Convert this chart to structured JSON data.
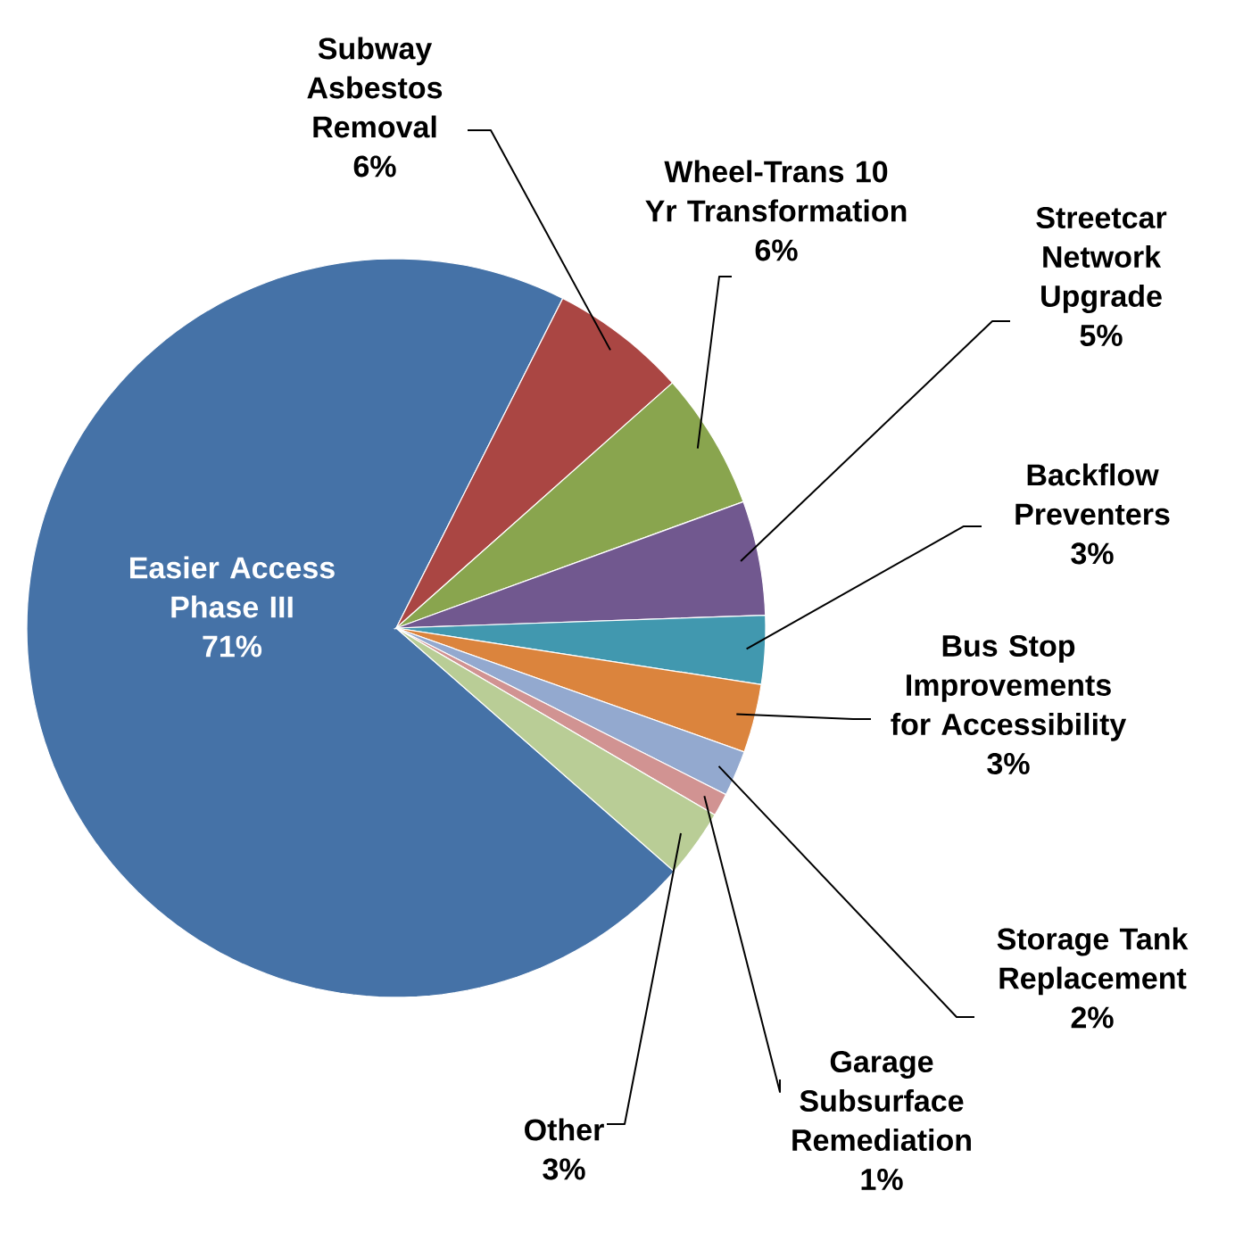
{
  "chart_data": {
    "type": "pie",
    "categories": [
      "Easier Access Phase III",
      "Subway Asbestos Removal",
      "Wheel-Trans 10 Yr Transformation",
      "Streetcar Network Upgrade",
      "Backflow Preventers",
      "Bus Stop Improvements for Accessibility",
      "Storage Tank Replacement",
      "Garage Subsurface Remediation",
      "Other"
    ],
    "values": [
      71,
      6,
      6,
      5,
      3,
      3,
      2,
      1,
      3
    ],
    "value_labels": [
      "71%",
      "6%",
      "6%",
      "5%",
      "3%",
      "3%",
      "2%",
      "1%",
      "3%"
    ],
    "colors": [
      "#4572a7",
      "#aa4643",
      "#89a54e",
      "#71588f",
      "#4198af",
      "#db843d",
      "#93a9cf",
      "#d19392",
      "#b9cd96"
    ]
  }
}
